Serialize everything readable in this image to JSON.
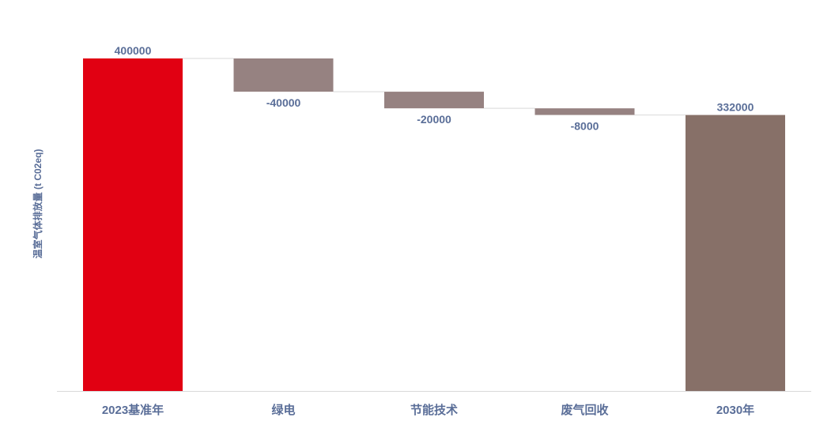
{
  "chart_data": {
    "type": "waterfall",
    "title": "",
    "xlabel": "",
    "ylabel": "温室气体排放量 (t C02eq)",
    "ylim": [
      0,
      400000
    ],
    "grid": false,
    "categories": [
      "2023基准年",
      "绿电",
      "节能技术",
      "废气回收",
      "2030年"
    ],
    "values": [
      400000,
      -40000,
      -20000,
      -8000,
      332000
    ],
    "labels": [
      "400000",
      "-40000",
      "-20000",
      "-8000",
      "332000"
    ],
    "kinds": [
      "total",
      "delta",
      "delta",
      "delta",
      "total"
    ],
    "colors": {
      "baseline": "#e10012",
      "reduction": "#968281",
      "final": "#877068",
      "connector": "#d9d9d9",
      "axis": "#d9d9d9",
      "text": "#5a6e98"
    }
  }
}
